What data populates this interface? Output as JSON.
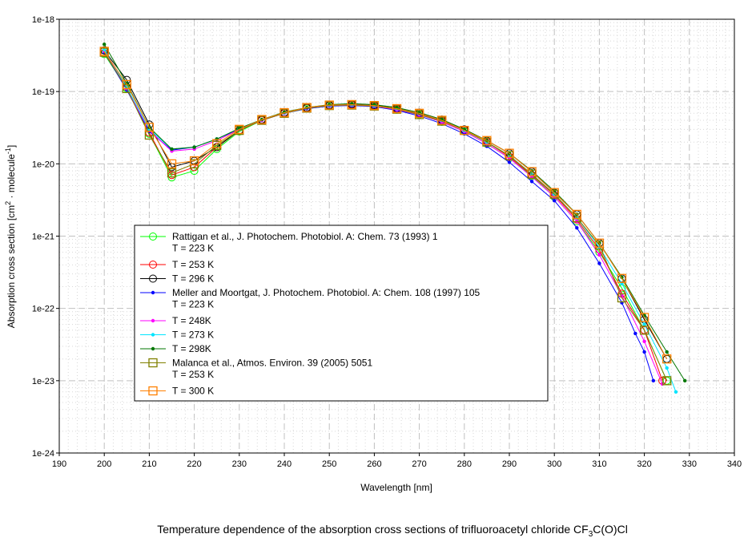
{
  "chart_data": {
    "type": "line",
    "title": "Temperature dependence of the absorption cross sections of trifluoroacetyl chloride CF",
    "title_sub": "3",
    "title_end": "C(O)Cl",
    "xlabel": "Wavelength [nm]",
    "ylabel_parts": [
      "Absorption cross section [cm",
      "2",
      " · molecule",
      "-1",
      "]"
    ],
    "xscale": "linear",
    "yscale": "log",
    "xlim": [
      190,
      340
    ],
    "ylim": [
      1e-24,
      1e-18
    ],
    "xticks": [
      "190",
      "200",
      "210",
      "220",
      "230",
      "240",
      "250",
      "260",
      "270",
      "280",
      "290",
      "300",
      "310",
      "320",
      "330",
      "340"
    ],
    "yticks": [
      "1e-24",
      "1e-23",
      "1e-22",
      "1e-21",
      "1e-20",
      "1e-19",
      "1e-18"
    ],
    "grid": true,
    "legend_placement": "lower-left-center",
    "series": [
      {
        "name": "Rattigan et al., J. Photochem. Photobiol. A: Chem. 73 (1993) 1",
        "sub": "T = 223 K",
        "color": "#00ff00",
        "marker": "circle",
        "x": [
          200,
          205,
          210,
          215,
          220,
          225,
          230,
          235,
          240,
          245,
          250,
          255,
          260,
          265,
          270,
          275,
          280,
          285,
          290,
          295,
          300,
          305,
          310,
          315,
          320,
          325
        ],
        "y": [
          3.3e-19,
          1.1e-19,
          2.6e-20,
          6.5e-21,
          8e-21,
          1.6e-20,
          2.8e-20,
          4e-20,
          5e-20,
          5.8e-20,
          6.3e-20,
          6.5e-20,
          6.2e-20,
          5.6e-20,
          4.8e-20,
          3.8e-20,
          2.8e-20,
          1.9e-20,
          1.2e-20,
          6.8e-21,
          3.5e-21,
          1.6e-21,
          6e-22,
          1.9e-22,
          5e-23,
          1e-23
        ]
      },
      {
        "name": "T = 253 K",
        "color": "#ff0000",
        "marker": "circle",
        "x": [
          200,
          205,
          210,
          215,
          220,
          225,
          230,
          235,
          240,
          245,
          250,
          255,
          260,
          265,
          270,
          275,
          280,
          285,
          290,
          295,
          300,
          305,
          310,
          315,
          320,
          324
        ],
        "y": [
          3.4e-19,
          1.15e-19,
          2.7e-20,
          7e-21,
          9e-21,
          1.7e-20,
          2.9e-20,
          4e-20,
          5e-20,
          5.9e-20,
          6.4e-20,
          6.5e-20,
          6.3e-20,
          5.7e-20,
          4.9e-20,
          3.9e-20,
          2.9e-20,
          2e-20,
          1.25e-20,
          7e-21,
          3.7e-21,
          1.7e-21,
          6.5e-22,
          1.6e-22,
          5e-23,
          1e-23
        ]
      },
      {
        "name": "T = 296 K",
        "color": "#000000",
        "marker": "circle",
        "x": [
          200,
          205,
          210,
          215,
          220,
          225,
          230,
          235,
          240,
          245,
          250,
          255,
          260,
          265,
          270,
          275,
          280,
          285,
          290,
          295,
          300,
          305,
          310,
          315,
          320,
          325
        ],
        "y": [
          3.7e-19,
          1.45e-19,
          3.5e-20,
          9e-21,
          1.1e-20,
          1.7e-20,
          2.9e-20,
          4.1e-20,
          5.1e-20,
          6e-20,
          6.5e-20,
          6.7e-20,
          6.5e-20,
          5.9e-20,
          5.1e-20,
          4.1e-20,
          3e-20,
          2.1e-20,
          1.4e-20,
          7.8e-21,
          4e-21,
          2e-21,
          8e-22,
          2.6e-22,
          7e-23,
          2e-23
        ]
      },
      {
        "name": "Meller and Moortgat, J. Photochem. Photobiol. A: Chem. 108 (1997) 105",
        "sub": "T = 223 K",
        "color": "#0000ff",
        "marker": "dot",
        "x": [
          200,
          205,
          210,
          215,
          220,
          225,
          230,
          235,
          240,
          245,
          250,
          255,
          260,
          265,
          270,
          275,
          280,
          285,
          290,
          295,
          300,
          305,
          310,
          315,
          318,
          320,
          322
        ],
        "y": [
          3.5e-19,
          1.05e-19,
          2.8e-20,
          1.55e-20,
          1.7e-20,
          2.2e-20,
          3e-20,
          4e-20,
          5e-20,
          5.8e-20,
          6.3e-20,
          6.4e-20,
          6.2e-20,
          5.5e-20,
          4.6e-20,
          3.6e-20,
          2.6e-20,
          1.75e-20,
          1.05e-20,
          5.7e-21,
          3.1e-21,
          1.3e-21,
          4.2e-22,
          1.2e-22,
          4.5e-23,
          2.5e-23,
          1e-23
        ]
      },
      {
        "name": "T = 248K",
        "color": "#ff00ff",
        "marker": "dot",
        "x": [
          200,
          205,
          210,
          215,
          220,
          225,
          230,
          235,
          240,
          245,
          250,
          255,
          260,
          265,
          270,
          275,
          280,
          285,
          290,
          295,
          300,
          305,
          310,
          315,
          320,
          324
        ],
        "y": [
          3.6e-19,
          1.1e-19,
          2.9e-20,
          1.5e-20,
          1.6e-20,
          2.1e-20,
          3e-20,
          4e-20,
          5e-20,
          5.9e-20,
          6.4e-20,
          6.5e-20,
          6.3e-20,
          5.6e-20,
          4.8e-20,
          3.8e-20,
          2.8e-20,
          1.9e-20,
          1.2e-20,
          6.6e-21,
          3.5e-21,
          1.6e-21,
          5.5e-22,
          1.5e-22,
          3.5e-23,
          9e-24
        ]
      },
      {
        "name": "T = 273 K",
        "color": "#00e5ff",
        "marker": "dot",
        "x": [
          200,
          205,
          210,
          215,
          220,
          225,
          230,
          235,
          240,
          245,
          250,
          255,
          260,
          265,
          270,
          275,
          280,
          285,
          290,
          295,
          300,
          305,
          310,
          315,
          320,
          325,
          327
        ],
        "y": [
          3.8e-19,
          1.15e-19,
          3e-20,
          1.6e-20,
          1.7e-20,
          2.2e-20,
          3.1e-20,
          4.1e-20,
          5.1e-20,
          6e-20,
          6.5e-20,
          6.6e-20,
          6.4e-20,
          5.8e-20,
          5e-20,
          4e-20,
          2.9e-20,
          2e-20,
          1.3e-20,
          7.2e-21,
          3.8e-21,
          1.8e-21,
          7e-22,
          2.2e-22,
          6e-23,
          1.5e-23,
          7e-24
        ]
      },
      {
        "name": "T = 298K",
        "color": "#007700",
        "marker": "dot",
        "x": [
          200,
          205,
          210,
          215,
          220,
          225,
          230,
          235,
          240,
          245,
          250,
          255,
          260,
          265,
          270,
          275,
          280,
          285,
          290,
          295,
          300,
          305,
          310,
          315,
          320,
          325,
          329
        ],
        "y": [
          4.5e-19,
          1.3e-19,
          3.2e-20,
          1.6e-20,
          1.7e-20,
          2.2e-20,
          3.1e-20,
          4.1e-20,
          5.2e-20,
          6e-20,
          6.6e-20,
          6.8e-20,
          6.6e-20,
          6e-20,
          5.1e-20,
          4.1e-20,
          3e-20,
          2.1e-20,
          1.4e-20,
          8e-21,
          4.2e-21,
          2e-21,
          8e-22,
          2.7e-22,
          8e-23,
          2.5e-23,
          1e-23
        ]
      },
      {
        "name": "Malanca et al., Atmos. Environ. 39 (2005) 5051",
        "sub": "T = 253 K",
        "color": "#808000",
        "marker": "square",
        "x": [
          200,
          205,
          210,
          215,
          220,
          225,
          230,
          235,
          240,
          245,
          250,
          255,
          260,
          265,
          270,
          275,
          280,
          285,
          290,
          295,
          300,
          305,
          310,
          315,
          320,
          325
        ],
        "y": [
          3.5e-19,
          1.1e-19,
          2.5e-20,
          7.5e-21,
          1e-20,
          1.8e-20,
          2.9e-20,
          4e-20,
          5e-20,
          5.9e-20,
          6.4e-20,
          6.5e-20,
          6.3e-20,
          5.7e-20,
          4.8e-20,
          3.9e-20,
          2.9e-20,
          2e-20,
          1.3e-20,
          7.2e-21,
          3.8e-21,
          1.8e-21,
          7.5e-22,
          1.4e-22,
          5e-23,
          1e-23
        ]
      },
      {
        "name": "T = 300 K",
        "color": "#ff8000",
        "marker": "square",
        "x": [
          200,
          205,
          210,
          215,
          220,
          225,
          230,
          235,
          240,
          245,
          250,
          255,
          260,
          265,
          270,
          275,
          280,
          285,
          290,
          295,
          300,
          305,
          310,
          315,
          320,
          325
        ],
        "y": [
          3.6e-19,
          1.25e-19,
          3.2e-20,
          1e-20,
          1.1e-20,
          1.9e-20,
          3e-20,
          4.1e-20,
          5.1e-20,
          6e-20,
          6.5e-20,
          6.6e-20,
          6.4e-20,
          5.8e-20,
          5e-20,
          4e-20,
          2.9e-20,
          2.1e-20,
          1.4e-20,
          7.8e-21,
          4e-21,
          2e-21,
          8e-22,
          2.6e-22,
          7.5e-23,
          2e-23
        ]
      }
    ]
  }
}
